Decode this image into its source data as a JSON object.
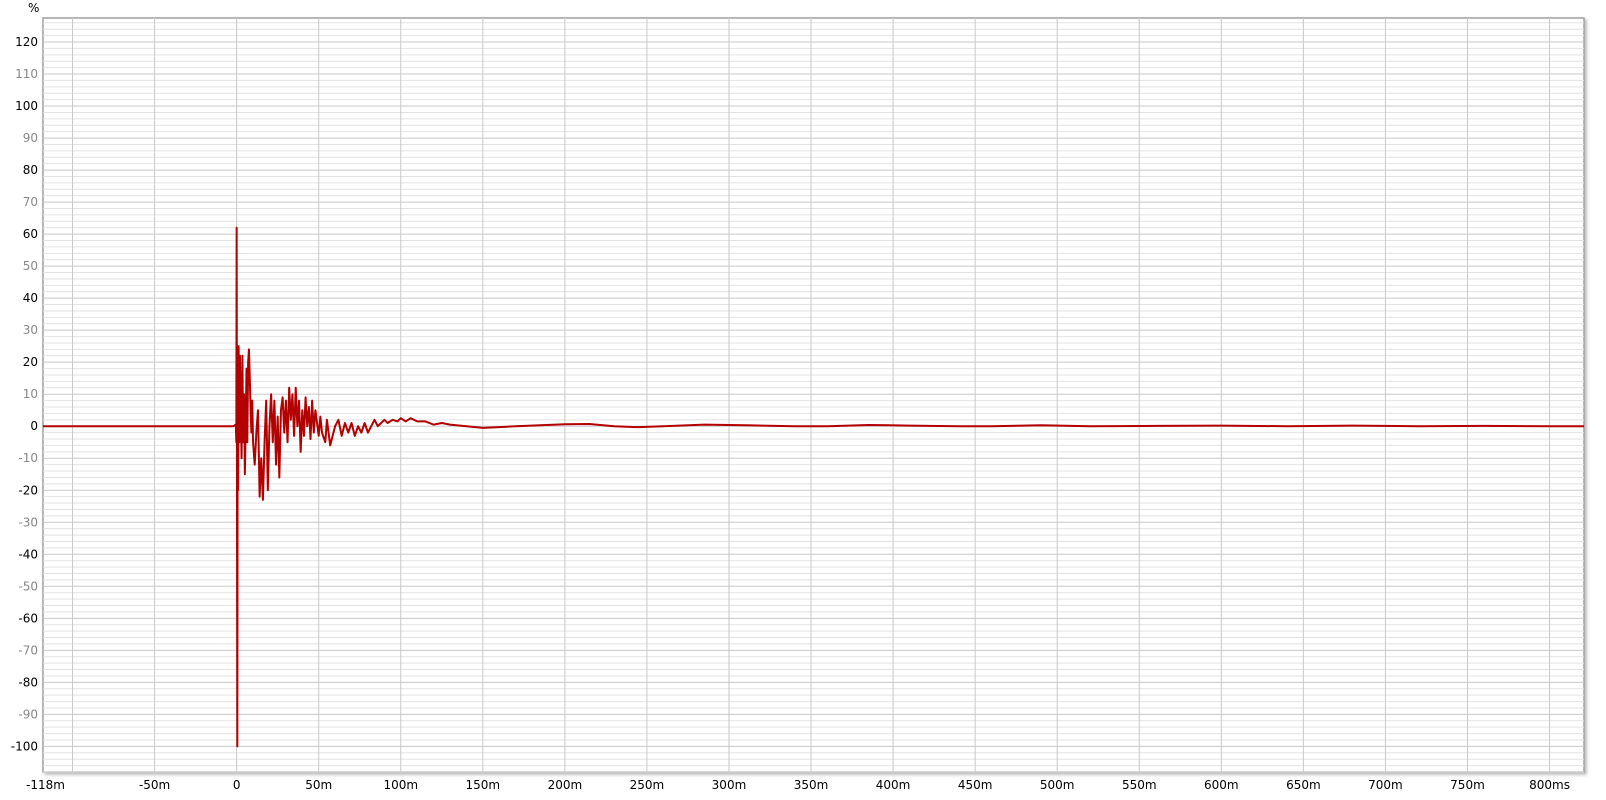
{
  "chart_data": {
    "type": "line",
    "title": "",
    "ylabel": "%",
    "xlabel": "",
    "xlim": [
      -118,
      821
    ],
    "ylim": [
      -108,
      127.5
    ],
    "grid": true,
    "x_unit": "ms",
    "x_ticks": [
      {
        "value": -118,
        "label": "-118m"
      },
      {
        "value": -50,
        "label": "-50m"
      },
      {
        "value": 0,
        "label": "0"
      },
      {
        "value": 50,
        "label": "50m"
      },
      {
        "value": 100,
        "label": "100m"
      },
      {
        "value": 150,
        "label": "150m"
      },
      {
        "value": 200,
        "label": "200m"
      },
      {
        "value": 250,
        "label": "250m"
      },
      {
        "value": 300,
        "label": "300m"
      },
      {
        "value": 350,
        "label": "350m"
      },
      {
        "value": 400,
        "label": "400m"
      },
      {
        "value": 450,
        "label": "450m"
      },
      {
        "value": 500,
        "label": "500m"
      },
      {
        "value": 550,
        "label": "550m"
      },
      {
        "value": 600,
        "label": "600m"
      },
      {
        "value": 650,
        "label": "650m"
      },
      {
        "value": 700,
        "label": "700m"
      },
      {
        "value": 750,
        "label": "750m"
      },
      {
        "value": 800,
        "label": "800ms"
      }
    ],
    "x_gridlines": [
      -100,
      -50,
      0,
      50,
      100,
      150,
      200,
      250,
      300,
      350,
      400,
      450,
      500,
      550,
      600,
      650,
      700,
      750,
      800
    ],
    "y_ticks": [
      120,
      110,
      100,
      90,
      80,
      70,
      60,
      50,
      40,
      30,
      20,
      10,
      0,
      -10,
      -20,
      -30,
      -40,
      -50,
      -60,
      -70,
      -80,
      -90,
      -100
    ],
    "y_minor_step": 2,
    "colors": {
      "series": "#b30000",
      "major_grid": "#c8c8c8",
      "minor_grid": "#e2e2e2",
      "tick_label": "#000000",
      "tick_label_odd": "#888888"
    },
    "series": [
      {
        "points": [
          [
            -118,
            0
          ],
          [
            -2,
            0
          ],
          [
            -0.5,
            0.5
          ],
          [
            -0.2,
            -5
          ],
          [
            0,
            62
          ],
          [
            0.2,
            -20
          ],
          [
            0.4,
            -100
          ],
          [
            0.6,
            10
          ],
          [
            0.9,
            -20
          ],
          [
            1.2,
            25
          ],
          [
            1.6,
            -5
          ],
          [
            2,
            22
          ],
          [
            2.5,
            5
          ],
          [
            3,
            -10
          ],
          [
            3.5,
            22
          ],
          [
            4,
            -5
          ],
          [
            4.5,
            10
          ],
          [
            5,
            -15
          ],
          [
            5.5,
            0
          ],
          [
            6,
            18
          ],
          [
            6.5,
            -5
          ],
          [
            7,
            20
          ],
          [
            7.5,
            24
          ],
          [
            8,
            15
          ],
          [
            8.5,
            5
          ],
          [
            9,
            -2
          ],
          [
            9.5,
            8
          ],
          [
            10,
            -5
          ],
          [
            11,
            -12
          ],
          [
            12,
            -2
          ],
          [
            13,
            5
          ],
          [
            14,
            -22
          ],
          [
            15,
            -10
          ],
          [
            16,
            -23
          ],
          [
            17,
            -5
          ],
          [
            18,
            8
          ],
          [
            19,
            -20
          ],
          [
            20,
            0
          ],
          [
            21,
            10
          ],
          [
            22,
            -5
          ],
          [
            23,
            8
          ],
          [
            24,
            -12
          ],
          [
            25,
            3
          ],
          [
            26,
            -16
          ],
          [
            27,
            5
          ],
          [
            28,
            9
          ],
          [
            29,
            -2
          ],
          [
            30,
            8
          ],
          [
            31,
            -5
          ],
          [
            32,
            12
          ],
          [
            33,
            2
          ],
          [
            34,
            10
          ],
          [
            35,
            -3
          ],
          [
            36,
            12
          ],
          [
            37,
            0
          ],
          [
            38,
            8
          ],
          [
            39,
            -8
          ],
          [
            40,
            5
          ],
          [
            41,
            -3
          ],
          [
            42,
            9
          ],
          [
            43,
            0
          ],
          [
            44,
            6
          ],
          [
            45,
            -4
          ],
          [
            46,
            8
          ],
          [
            47,
            -2
          ],
          [
            48,
            5
          ],
          [
            50,
            -3
          ],
          [
            51,
            3
          ],
          [
            52,
            -2
          ],
          [
            54,
            -5
          ],
          [
            55,
            2
          ],
          [
            57,
            -6
          ],
          [
            58,
            -4
          ],
          [
            60,
            0
          ],
          [
            62,
            2
          ],
          [
            64,
            -3
          ],
          [
            66,
            1
          ],
          [
            68,
            -2
          ],
          [
            70,
            1
          ],
          [
            72,
            -3
          ],
          [
            74,
            0
          ],
          [
            76,
            -2
          ],
          [
            78,
            1
          ],
          [
            80,
            -2
          ],
          [
            82,
            0
          ],
          [
            84,
            2
          ],
          [
            86,
            0
          ],
          [
            88,
            1
          ],
          [
            90,
            2
          ],
          [
            92,
            1
          ],
          [
            95,
            2
          ],
          [
            98,
            1.5
          ],
          [
            100,
            2.5
          ],
          [
            103,
            1.5
          ],
          [
            106,
            2.5
          ],
          [
            110,
            1.5
          ],
          [
            115,
            1.5
          ],
          [
            120,
            0.5
          ],
          [
            125,
            1
          ],
          [
            130,
            0.5
          ],
          [
            140,
            0
          ],
          [
            150,
            -0.5
          ],
          [
            160,
            -0.3
          ],
          [
            170,
            0
          ],
          [
            185,
            0.3
          ],
          [
            200,
            0.6
          ],
          [
            215,
            0.7
          ],
          [
            230,
            0
          ],
          [
            245,
            -0.3
          ],
          [
            260,
            0
          ],
          [
            285,
            0.5
          ],
          [
            310,
            0.3
          ],
          [
            340,
            0
          ],
          [
            360,
            0
          ],
          [
            385,
            0.4
          ],
          [
            410,
            0.2
          ],
          [
            440,
            0
          ],
          [
            460,
            0
          ],
          [
            490,
            0.3
          ],
          [
            520,
            0
          ],
          [
            560,
            0.1
          ],
          [
            600,
            0.2
          ],
          [
            640,
            0
          ],
          [
            680,
            0.2
          ],
          [
            720,
            0
          ],
          [
            760,
            0.1
          ],
          [
            800,
            0
          ],
          [
            821,
            0
          ]
        ]
      }
    ]
  }
}
